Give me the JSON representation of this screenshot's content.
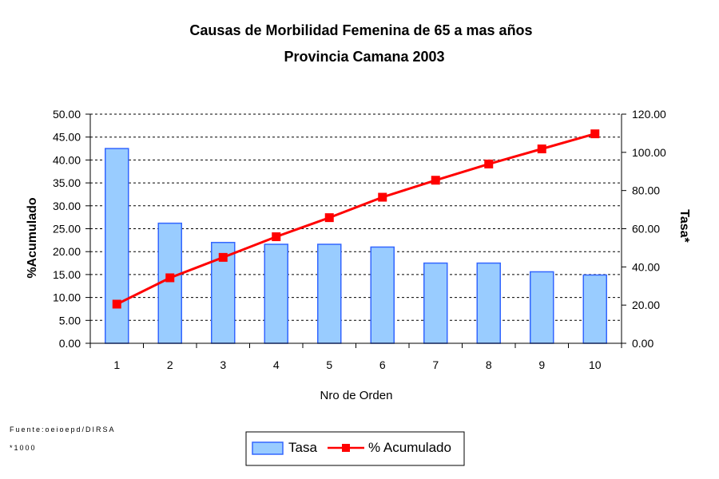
{
  "chart_data": {
    "type": "bar",
    "title": "Causas de Morbilidad Femenina de 65 a mas años",
    "subtitle": "Provincia Camana 2003",
    "xlabel": "Nro de Orden",
    "ylabel_left": "%Acumulado",
    "ylabel_right": "Tasa*",
    "categories": [
      "1",
      "2",
      "3",
      "4",
      "5",
      "6",
      "7",
      "8",
      "9",
      "10"
    ],
    "ylim_left": [
      0,
      50
    ],
    "ylim_right": [
      0,
      120
    ],
    "yticks_left": [
      "50.00",
      "45.00",
      "40.00",
      "35.00",
      "30.00",
      "25.00",
      "20.00",
      "15.00",
      "10.00",
      "5.00",
      "0.00"
    ],
    "yticks_right": [
      "120.00",
      "100.00",
      "80.00",
      "60.00",
      "40.00",
      "20.00",
      "0.00"
    ],
    "grid": "horizontal dashed",
    "legend_position": "bottom",
    "series": [
      {
        "name": "Tasa",
        "type": "bar",
        "axis": "left",
        "values": [
          42.5,
          26.2,
          22.0,
          21.6,
          21.6,
          21.0,
          17.5,
          17.5,
          15.6,
          14.9
        ],
        "color": "#99ccff",
        "border": "#3366ff"
      },
      {
        "name": "% Acumulado",
        "type": "line",
        "axis": "right",
        "values": [
          20.5,
          34.3,
          45.0,
          55.8,
          65.8,
          76.5,
          85.4,
          93.9,
          101.8,
          109.7
        ],
        "color": "#ff0000",
        "marker": "square"
      }
    ]
  },
  "footnotes": {
    "source": "Fuente:oeioepd/DIRSA",
    "note": "*1000"
  }
}
